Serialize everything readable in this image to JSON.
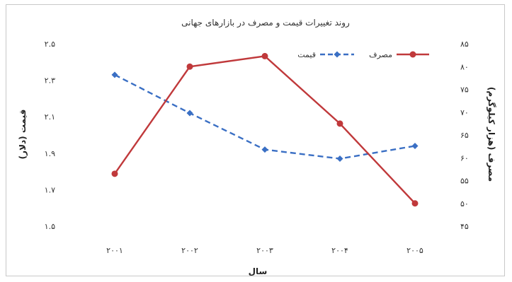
{
  "chart_data": {
    "type": "line",
    "title": "روند تغییرات قیمت و مصرف در بازارهای جهانی",
    "xlabel": "سال",
    "ylabel_left": "قیمت (دلار)",
    "ylabel_right": "مصرف (هزار کیلوگرم)",
    "categories": [
      "۲۰۰۱",
      "۲۰۰۲",
      "۲۰۰۳",
      "۲۰۰۴",
      "۲۰۰۵"
    ],
    "y_left": {
      "min": 1.5,
      "max": 2.5,
      "ticks": [
        1.5,
        1.7,
        1.9,
        2.1,
        2.3,
        2.5
      ],
      "tick_labels": [
        "۱.۵",
        "۱.۷",
        "۱.۹",
        "۲.۱",
        "۲.۳",
        "۲.۵"
      ]
    },
    "y_right": {
      "min": 45,
      "max": 85,
      "ticks": [
        45,
        50,
        55,
        60,
        65,
        70,
        75,
        80,
        85
      ],
      "tick_labels": [
        "۴۵",
        "۵۰",
        "۵۵",
        "۶۰",
        "۶۵",
        "۷۰",
        "۷۵",
        "۸۰",
        "۸۵"
      ]
    },
    "grid": false,
    "legend_position": "top-right",
    "series": [
      {
        "name": "قیمت",
        "axis": "left",
        "style": "dashed",
        "marker": "diamond",
        "color": "#3a6fc4",
        "values": [
          2.33,
          2.12,
          1.92,
          1.87,
          1.94
        ]
      },
      {
        "name": "مصرف",
        "axis": "right",
        "style": "solid",
        "marker": "circle",
        "color": "#c0393b",
        "values": [
          56.5,
          80.0,
          82.3,
          67.5,
          50.0
        ]
      }
    ]
  }
}
